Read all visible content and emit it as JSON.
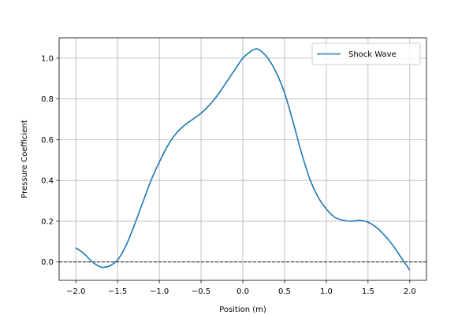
{
  "chart_data": {
    "type": "line",
    "title": "",
    "xlabel": "Position (m)",
    "ylabel": "Pressure Coefficient",
    "xlim": [
      -2.2,
      2.2
    ],
    "ylim": [
      -0.09,
      1.1
    ],
    "xticks": [
      -2.0,
      -1.5,
      -1.0,
      -0.5,
      0.0,
      0.5,
      1.0,
      1.5,
      2.0
    ],
    "xtick_labels": [
      "−2.0",
      "−1.5",
      "−1.0",
      "−0.5",
      "0.0",
      "0.5",
      "1.0",
      "1.5",
      "2.0"
    ],
    "yticks": [
      0.0,
      0.2,
      0.4,
      0.6,
      0.8,
      1.0
    ],
    "ytick_labels": [
      "0.0",
      "0.2",
      "0.4",
      "0.6",
      "0.8",
      "1.0"
    ],
    "grid": true,
    "legend_position": "top-right",
    "reference_line": {
      "y": 0.0,
      "style": "dashed",
      "color": "#000000"
    },
    "series": [
      {
        "name": "Shock Wave",
        "color": "#1f77b4",
        "x": [
          -2.0,
          -1.9,
          -1.8,
          -1.7,
          -1.65,
          -1.6,
          -1.5,
          -1.4,
          -1.3,
          -1.2,
          -1.1,
          -1.0,
          -0.9,
          -0.8,
          -0.7,
          -0.6,
          -0.5,
          -0.4,
          -0.3,
          -0.2,
          -0.1,
          0.0,
          0.1,
          0.15,
          0.2,
          0.3,
          0.4,
          0.5,
          0.6,
          0.7,
          0.8,
          0.9,
          1.0,
          1.1,
          1.2,
          1.3,
          1.4,
          1.5,
          1.6,
          1.7,
          1.8,
          1.9,
          2.0
        ],
        "y": [
          0.07,
          0.04,
          0.0,
          -0.025,
          -0.025,
          -0.02,
          0.01,
          0.08,
          0.18,
          0.29,
          0.4,
          0.49,
          0.57,
          0.63,
          0.67,
          0.7,
          0.73,
          0.77,
          0.82,
          0.88,
          0.94,
          1.0,
          1.035,
          1.045,
          1.04,
          1.0,
          0.93,
          0.83,
          0.69,
          0.54,
          0.41,
          0.32,
          0.26,
          0.22,
          0.205,
          0.2,
          0.205,
          0.195,
          0.17,
          0.13,
          0.08,
          0.02,
          -0.04
        ]
      }
    ]
  }
}
